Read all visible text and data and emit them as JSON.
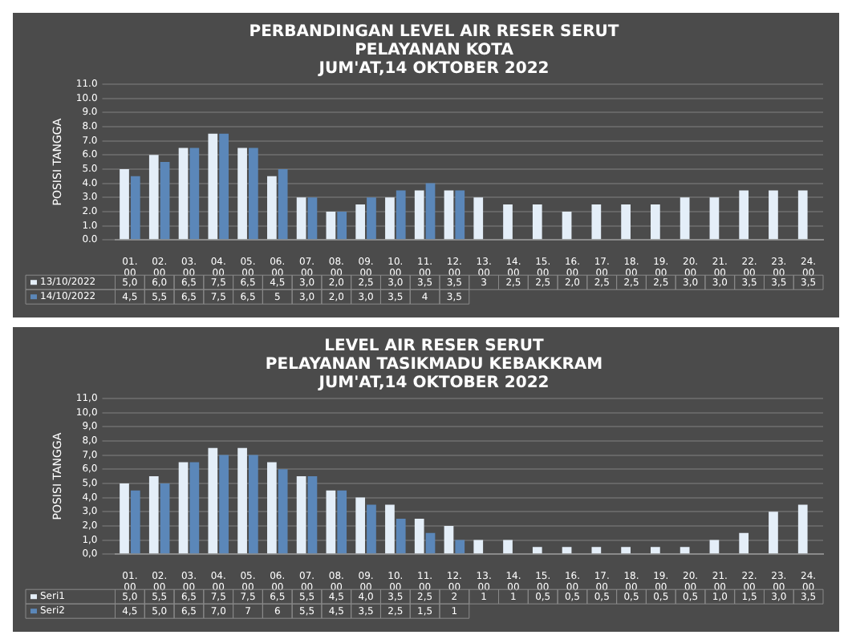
{
  "chart_data": [
    {
      "type": "bar",
      "title": "PERBANDINGAN LEVEL AIR RESER SERUT\nPELAYANAN KOTA\nJUM'AT,14 OKTOBER 2022",
      "ylabel": "POSISI TANGGA",
      "categories": [
        "01.00",
        "02.00",
        "03.00",
        "04.00",
        "05.00",
        "06.00",
        "07.00",
        "08.00",
        "09.00",
        "10.00",
        "11.00",
        "12.00",
        "13.00",
        "14.00",
        "15.00",
        "16.00",
        "17.00",
        "18.00",
        "19.00",
        "20.00",
        "21.00",
        "22.00",
        "23.00",
        "24.00"
      ],
      "series": [
        {
          "name": "13/10/2022",
          "color": "#e4eef8",
          "values": [
            5.0,
            6.0,
            6.5,
            7.5,
            6.5,
            4.5,
            3.0,
            2.0,
            2.5,
            3.0,
            3.5,
            3.5,
            3.0,
            2.5,
            2.5,
            2.0,
            2.5,
            2.5,
            2.5,
            3.0,
            3.0,
            3.5,
            3.5,
            3.5
          ],
          "value_labels": [
            "5,0",
            "6,0",
            "6,5",
            "7,5",
            "6,5",
            "4,5",
            "3,0",
            "2,0",
            "2,5",
            "3,0",
            "3,5",
            "3,5",
            "3",
            "2,5",
            "2,5",
            "2,0",
            "2,5",
            "2,5",
            "2,5",
            "3,0",
            "3,0",
            "3,5",
            "3,5",
            "3,5"
          ]
        },
        {
          "name": "14/10/2022",
          "color": "#5b87b9",
          "values": [
            4.5,
            5.5,
            6.5,
            7.5,
            6.5,
            5.0,
            3.0,
            2.0,
            3.0,
            3.5,
            4.0,
            3.5,
            null,
            null,
            null,
            null,
            null,
            null,
            null,
            null,
            null,
            null,
            null,
            null
          ],
          "value_labels": [
            "4,5",
            "5,5",
            "6,5",
            "7,5",
            "6,5",
            "5",
            "3,0",
            "2,0",
            "3,0",
            "3,5",
            "4",
            "3,5",
            null,
            null,
            null,
            null,
            null,
            null,
            null,
            null,
            null,
            null,
            null,
            null
          ]
        }
      ],
      "ylim": [
        0,
        11
      ],
      "yticks": [
        {
          "value": 0,
          "label": "0.0"
        },
        {
          "value": 1,
          "label": "1.0"
        },
        {
          "value": 2,
          "label": "2.0"
        },
        {
          "value": 3,
          "label": "3.0"
        },
        {
          "value": 4,
          "label": "4.0"
        },
        {
          "value": 5,
          "label": "5.0"
        },
        {
          "value": 6,
          "label": "6.0"
        },
        {
          "value": 7,
          "label": "7.0"
        },
        {
          "value": 8,
          "label": "8.0"
        },
        {
          "value": 9,
          "label": "9.0"
        },
        {
          "value": 10,
          "label": "10.0"
        },
        {
          "value": 11,
          "label": "11.0"
        }
      ],
      "grid": "y",
      "legend": "bottom"
    },
    {
      "type": "bar",
      "title": "LEVEL AIR RESER SERUT\nPELAYANAN TASIKMADU KEBAKKRAM\nJUM'AT,14 OKTOBER 2022",
      "ylabel": "POSISI TANGGA",
      "categories": [
        "01.00",
        "02.00",
        "03.00",
        "04.00",
        "05.00",
        "06.00",
        "07.00",
        "08.00",
        "09.00",
        "10.00",
        "11.00",
        "12.00",
        "13.00",
        "14.00",
        "15.00",
        "16.00",
        "17.00",
        "18.00",
        "19.00",
        "20.00",
        "21.00",
        "22.00",
        "23.00",
        "24.00"
      ],
      "series": [
        {
          "name": "Seri1",
          "color": "#e4eef8",
          "values": [
            5.0,
            5.5,
            6.5,
            7.5,
            7.5,
            6.5,
            5.5,
            4.5,
            4.0,
            3.5,
            2.5,
            2.0,
            1.0,
            1.0,
            0.5,
            0.5,
            0.5,
            0.5,
            0.5,
            0.5,
            1.0,
            1.5,
            3.0,
            3.5
          ],
          "value_labels": [
            "5,0",
            "5,5",
            "6,5",
            "7,5",
            "7,5",
            "6,5",
            "5,5",
            "4,5",
            "4,0",
            "3,5",
            "2,5",
            "2",
            "1",
            "1",
            "0,5",
            "0,5",
            "0,5",
            "0,5",
            "0,5",
            "0,5",
            "1,0",
            "1,5",
            "3,0",
            "3,5"
          ]
        },
        {
          "name": "Seri2",
          "color": "#5b87b9",
          "values": [
            4.5,
            5.0,
            6.5,
            7.0,
            7.0,
            6.0,
            5.5,
            4.5,
            3.5,
            2.5,
            1.5,
            1.0,
            null,
            null,
            null,
            null,
            null,
            null,
            null,
            null,
            null,
            null,
            null,
            null
          ],
          "value_labels": [
            "4,5",
            "5,0",
            "6,5",
            "7,0",
            "7",
            "6",
            "5,5",
            "4,5",
            "3,5",
            "2,5",
            "1,5",
            "1",
            null,
            null,
            null,
            null,
            null,
            null,
            null,
            null,
            null,
            null,
            null,
            null
          ]
        }
      ],
      "ylim": [
        0,
        11
      ],
      "yticks": [
        {
          "value": 0,
          "label": "0,0"
        },
        {
          "value": 1,
          "label": "1,0"
        },
        {
          "value": 2,
          "label": "2,0"
        },
        {
          "value": 3,
          "label": "3,0"
        },
        {
          "value": 4,
          "label": "4,0"
        },
        {
          "value": 5,
          "label": "5,0"
        },
        {
          "value": 6,
          "label": "6,0"
        },
        {
          "value": 7,
          "label": "7,0"
        },
        {
          "value": 8,
          "label": "8,0"
        },
        {
          "value": 9,
          "label": "9,0"
        },
        {
          "value": 10,
          "label": "10,0"
        },
        {
          "value": 11,
          "label": "11,0"
        }
      ],
      "grid": "y",
      "legend": "bottom"
    }
  ]
}
